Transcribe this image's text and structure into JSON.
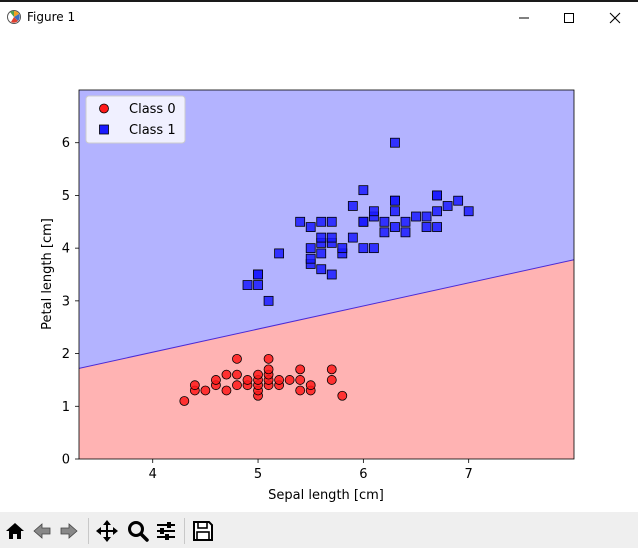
{
  "window": {
    "title": "Figure 1",
    "buttons": [
      {
        "name": "minimize-button",
        "icon": "minimize-icon"
      },
      {
        "name": "maximize-button",
        "icon": "maximize-icon"
      },
      {
        "name": "close-button",
        "icon": "close-icon"
      }
    ]
  },
  "toolbar": {
    "items": [
      {
        "name": "home-button",
        "icon": "home-icon"
      },
      {
        "name": "back-button",
        "icon": "back-arrow-icon"
      },
      {
        "name": "forward-button",
        "icon": "forward-arrow-icon"
      },
      {
        "name": "pan-button",
        "icon": "move-icon"
      },
      {
        "name": "zoom-button",
        "icon": "magnifier-icon"
      },
      {
        "name": "configure-subplots-button",
        "icon": "sliders-icon"
      },
      {
        "name": "save-button",
        "icon": "floppy-disk-icon"
      }
    ]
  },
  "chart_data": {
    "type": "scatter",
    "title": "",
    "xlabel": "Sepal length [cm]",
    "ylabel": "Petal length [cm]",
    "xlim": [
      3.3,
      8.0
    ],
    "ylim": [
      0,
      7.0
    ],
    "xticks": [
      4,
      5,
      6,
      7
    ],
    "yticks": [
      0,
      1,
      2,
      3,
      4,
      5,
      6
    ],
    "grid": false,
    "legend_position": "top-left",
    "decision_boundary": {
      "line": [
        [
          3.3,
          1.72
        ],
        [
          8.0,
          3.78
        ]
      ],
      "regions": [
        {
          "label": "Class 0",
          "side": "below",
          "color": "#ffb3b3"
        },
        {
          "label": "Class 1",
          "side": "above",
          "color": "#b3b3ff"
        }
      ],
      "line_color": "#4b2bd6"
    },
    "series": [
      {
        "name": "Class 0",
        "marker": "circle",
        "color": "#ff1a1a",
        "edgecolor": "#000000",
        "x": [
          4.3,
          4.4,
          4.4,
          4.5,
          4.6,
          4.6,
          4.7,
          4.7,
          4.8,
          4.8,
          4.8,
          4.9,
          4.9,
          5.0,
          5.0,
          5.0,
          5.0,
          5.0,
          5.1,
          5.1,
          5.1,
          5.1,
          5.1,
          5.2,
          5.2,
          5.3,
          5.4,
          5.4,
          5.4,
          5.5,
          5.5,
          5.7,
          5.7,
          5.8
        ],
        "y": [
          1.1,
          1.3,
          1.4,
          1.3,
          1.4,
          1.5,
          1.3,
          1.6,
          1.4,
          1.6,
          1.9,
          1.4,
          1.5,
          1.2,
          1.3,
          1.4,
          1.5,
          1.6,
          1.4,
          1.5,
          1.6,
          1.7,
          1.9,
          1.4,
          1.5,
          1.5,
          1.3,
          1.5,
          1.7,
          1.3,
          1.4,
          1.5,
          1.7,
          1.2
        ]
      },
      {
        "name": "Class 1",
        "marker": "square",
        "color": "#1a1aff",
        "edgecolor": "#000000",
        "x": [
          4.9,
          5.0,
          5.0,
          5.0,
          5.1,
          5.2,
          5.4,
          5.5,
          5.5,
          5.5,
          5.5,
          5.6,
          5.6,
          5.6,
          5.6,
          5.6,
          5.7,
          5.7,
          5.7,
          5.7,
          5.8,
          5.8,
          5.9,
          5.9,
          6.0,
          6.0,
          6.0,
          6.0,
          6.1,
          6.1,
          6.1,
          6.2,
          6.2,
          6.3,
          6.3,
          6.3,
          6.3,
          6.3,
          6.4,
          6.4,
          6.5,
          6.6,
          6.6,
          6.7,
          6.7,
          6.7,
          6.7,
          6.8,
          6.9,
          7.0
        ],
        "y": [
          3.3,
          3.3,
          3.5,
          3.5,
          3.0,
          3.9,
          4.5,
          3.7,
          3.8,
          4.0,
          4.4,
          3.6,
          3.9,
          4.1,
          4.2,
          4.5,
          3.5,
          4.1,
          4.2,
          4.5,
          3.9,
          4.0,
          4.2,
          4.8,
          4.0,
          4.5,
          4.5,
          5.1,
          4.0,
          4.6,
          4.7,
          4.3,
          4.5,
          4.4,
          4.7,
          4.9,
          4.9,
          6.0,
          4.3,
          4.5,
          4.6,
          4.4,
          4.6,
          4.4,
          4.7,
          5.0,
          5.0,
          4.8,
          4.9,
          4.7
        ]
      }
    ]
  }
}
